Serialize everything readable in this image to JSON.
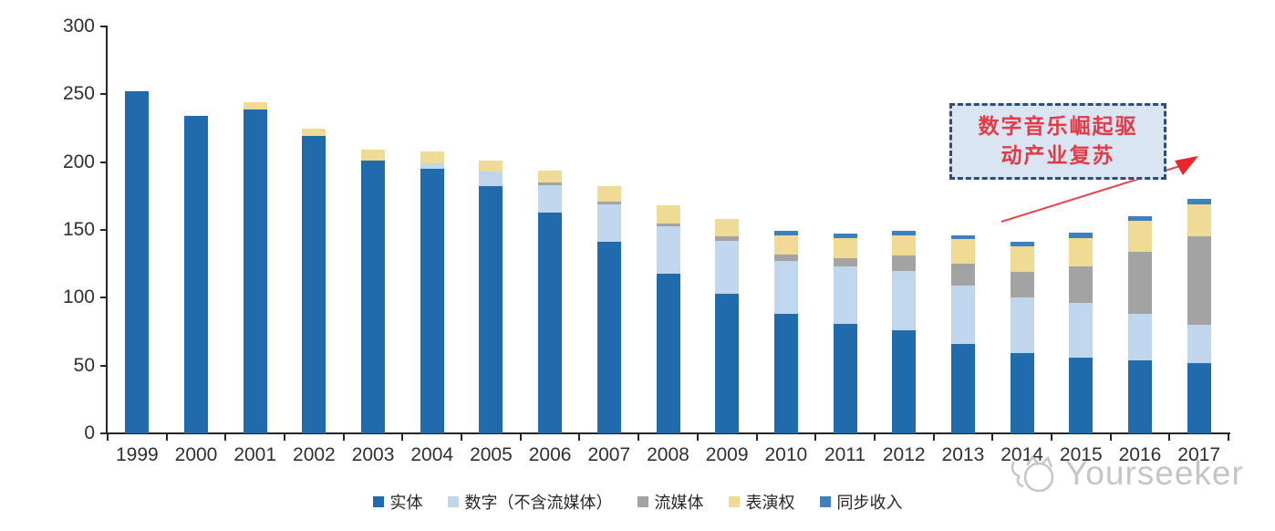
{
  "chart_data": {
    "type": "bar",
    "stacked": true,
    "title": "",
    "xlabel": "",
    "ylabel": "",
    "ylim": [
      0,
      300
    ],
    "yticks": [
      0,
      50,
      100,
      150,
      200,
      250,
      300
    ],
    "grid": false,
    "legend_position": "bottom",
    "categories": [
      "1999",
      "2000",
      "2001",
      "2002",
      "2003",
      "2004",
      "2005",
      "2006",
      "2007",
      "2008",
      "2009",
      "2010",
      "2011",
      "2012",
      "2013",
      "2014",
      "2015",
      "2016",
      "2017"
    ],
    "series": [
      {
        "name": "实体",
        "color": "#1F6BAC",
        "values": [
          252,
          234,
          239,
          219,
          201,
          195,
          182,
          163,
          141,
          118,
          103,
          88,
          81,
          76,
          66,
          59,
          56,
          54,
          52
        ]
      },
      {
        "name": "数字（不含流媒体）",
        "color": "#BFD6EC",
        "values": [
          0,
          0,
          0,
          0,
          0,
          4,
          11,
          20,
          28,
          35,
          39,
          39,
          42,
          44,
          43,
          41,
          40,
          34,
          28
        ]
      },
      {
        "name": "流媒体",
        "color": "#A3A3A3",
        "values": [
          0,
          0,
          0,
          0,
          0,
          0,
          0,
          2,
          2,
          2,
          3,
          5,
          6,
          11,
          16,
          19,
          27,
          46,
          65
        ]
      },
      {
        "name": "表演权",
        "color": "#EFDA96",
        "values": [
          0,
          0,
          5,
          6,
          8,
          9,
          8,
          9,
          11,
          13,
          13,
          14,
          15,
          15,
          18,
          19,
          21,
          23,
          24
        ]
      },
      {
        "name": "同步收入",
        "color": "#3E7FBE",
        "values": [
          0,
          0,
          0,
          0,
          0,
          0,
          0,
          0,
          0,
          0,
          0,
          3,
          3,
          3,
          3,
          3,
          4,
          3,
          4
        ]
      }
    ]
  },
  "annotation": {
    "line1": "数字音乐崛起驱",
    "line2": "动产业复苏",
    "text_color": "#E23B46",
    "box_fill": "#D9E5F3",
    "box_border": "#2E4D7B",
    "arrow_color": "#E8444E"
  },
  "watermark": {
    "text": "Yourseeker",
    "color": "#C5C5C5"
  },
  "axis": {
    "color": "#262626",
    "label_color": "#303030"
  }
}
